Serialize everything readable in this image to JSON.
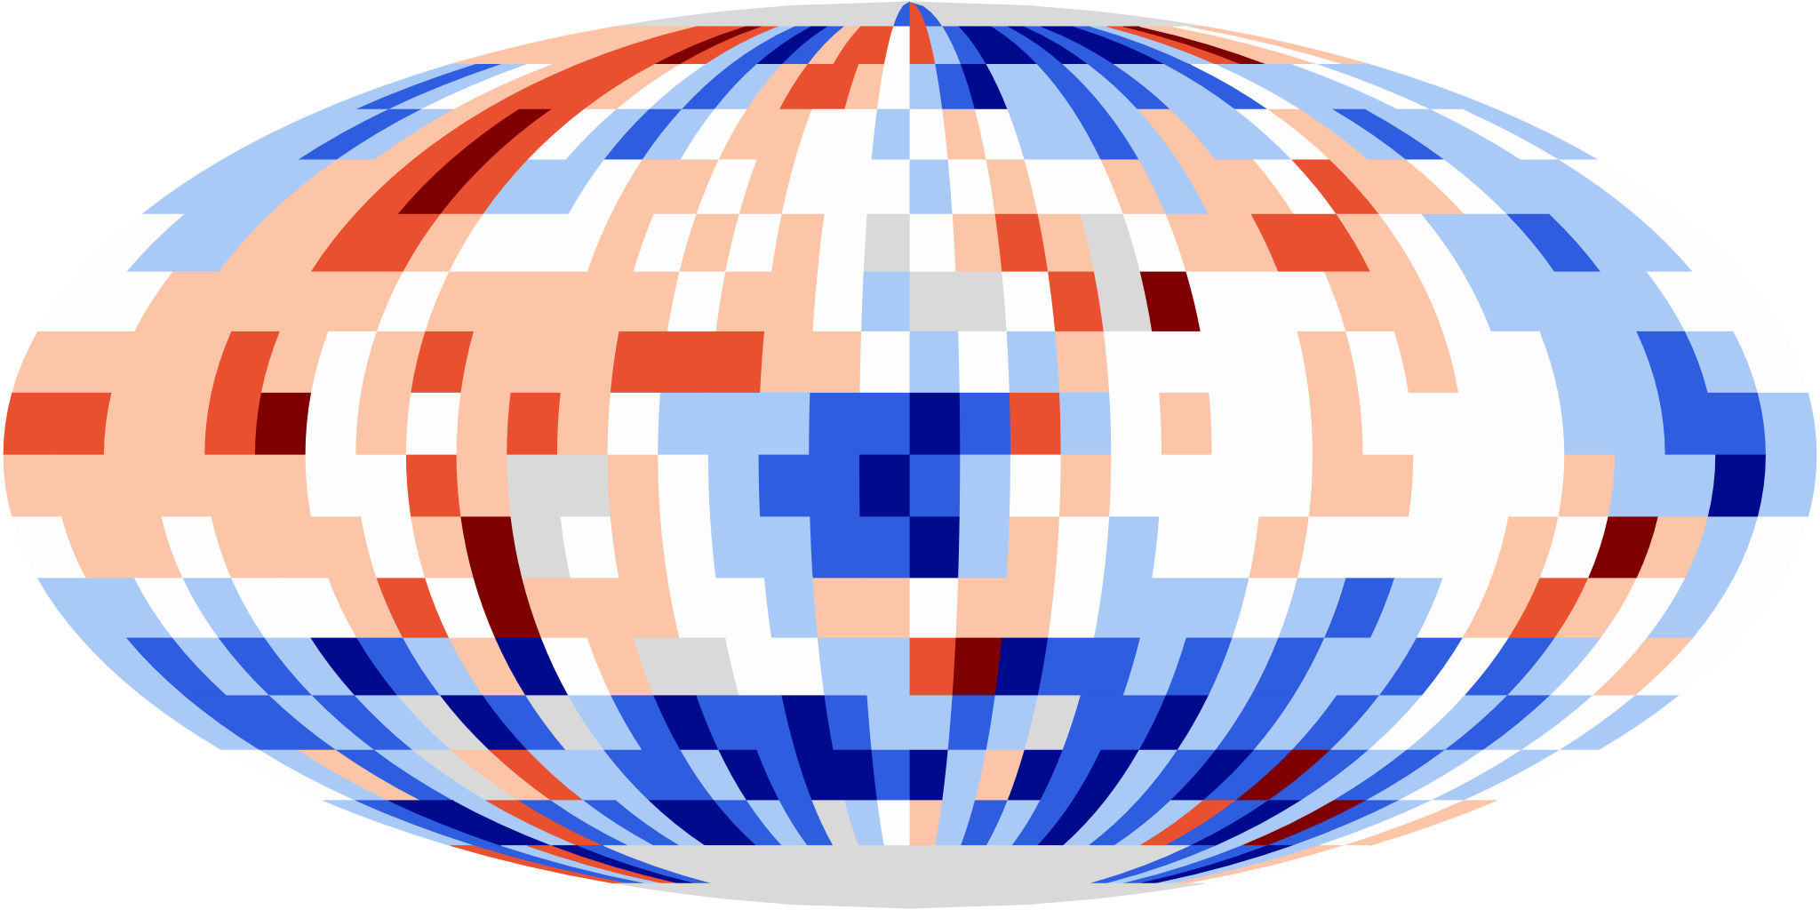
{
  "map": {
    "projection": "mollweide",
    "palette": [
      "#000a8c",
      "#2f5de0",
      "#a9c9f7",
      "#fdfdfd",
      "#fcc5a8",
      "#e8502f",
      "#7f0000"
    ],
    "missing_color": "#d9d9d9",
    "cells": [
      [
        null,
        null,
        null,
        null,
        null,
        null,
        null,
        null,
        null,
        null,
        null,
        null,
        null,
        null,
        null,
        null,
        null,
        -2,
        2,
        -2,
        null,
        null,
        null,
        null,
        null,
        null,
        null,
        null,
        null,
        null,
        null,
        null,
        null,
        null,
        null,
        null
      ],
      [
        1,
        1,
        1,
        1,
        1,
        2,
        2,
        2,
        3,
        2,
        -1,
        -2,
        -3,
        -2,
        1,
        2,
        2,
        0,
        2,
        -1,
        -2,
        -3,
        -3,
        -2,
        -3,
        -2,
        -3,
        -3,
        -2,
        -1,
        2,
        3,
        1,
        1,
        0,
        1
      ],
      [
        -1,
        -2,
        -1,
        0,
        1,
        2,
        2,
        2,
        1,
        0,
        -1,
        -2,
        -1,
        1,
        2,
        2,
        1,
        0,
        -1,
        -2,
        -3,
        -1,
        -1,
        -2,
        -1,
        -2,
        -1,
        -1,
        -2,
        0,
        -1,
        -1,
        -1,
        0,
        -1,
        -1
      ],
      [
        -1,
        -1,
        -2,
        -1,
        1,
        2,
        3,
        2,
        0,
        -1,
        -2,
        -1,
        0,
        1,
        1,
        0,
        0,
        -1,
        0,
        1,
        0,
        -1,
        -1,
        -2,
        -1,
        1,
        -1,
        -1,
        0,
        1,
        -1,
        -2,
        -1,
        -1,
        0,
        -1
      ],
      [
        -1,
        -1,
        -1,
        1,
        1,
        2,
        3,
        2,
        -1,
        -1,
        0,
        1,
        1,
        0,
        1,
        0,
        0,
        0,
        -1,
        0,
        1,
        0,
        0,
        1,
        -1,
        1,
        1,
        0,
        2,
        1,
        1,
        0,
        -1,
        -1,
        -1,
        0
      ],
      [
        0,
        -1,
        -1,
        1,
        1,
        2,
        2,
        1,
        0,
        0,
        0,
        1,
        0,
        1,
        0,
        1,
        0,
        null,
        0,
        1,
        2,
        1,
        null,
        0,
        1,
        1,
        2,
        2,
        1,
        0,
        -1,
        -1,
        -2,
        -1,
        -1,
        0
      ],
      [
        0,
        0,
        1,
        1,
        1,
        1,
        1,
        0,
        1,
        1,
        1,
        1,
        1,
        0,
        1,
        1,
        0,
        -1,
        null,
        null,
        0,
        2,
        null,
        3,
        0,
        0,
        0,
        1,
        1,
        0,
        -1,
        -1,
        -1,
        -1,
        0,
        0
      ],
      [
        1,
        1,
        1,
        1,
        2,
        1,
        0,
        1,
        2,
        1,
        1,
        1,
        2,
        2,
        2,
        1,
        1,
        0,
        -1,
        0,
        -1,
        1,
        0,
        0,
        0,
        0,
        1,
        0,
        1,
        0,
        0,
        -1,
        -1,
        -2,
        -1,
        0
      ],
      [
        2,
        2,
        1,
        1,
        2,
        3,
        0,
        1,
        0,
        1,
        2,
        1,
        0,
        -1,
        -1,
        -1,
        -2,
        -2,
        -3,
        -2,
        2,
        -1,
        0,
        1,
        0,
        0,
        1,
        0,
        0,
        0,
        0,
        -1,
        -1,
        -2,
        -2,
        -1
      ],
      [
        1,
        1,
        1,
        1,
        1,
        1,
        0,
        0,
        2,
        1,
        null,
        null,
        1,
        0,
        -1,
        -2,
        -2,
        -3,
        -2,
        -1,
        0,
        1,
        0,
        0,
        0,
        0,
        1,
        1,
        0,
        0,
        0,
        1,
        -1,
        -1,
        -3,
        -1
      ],
      [
        0,
        1,
        1,
        0,
        1,
        1,
        1,
        0,
        1,
        3,
        null,
        0,
        1,
        0,
        -1,
        -1,
        -2,
        -2,
        -3,
        -1,
        1,
        0,
        -1,
        0,
        0,
        1,
        0,
        0,
        0,
        0,
        1,
        0,
        3,
        1,
        -1,
        0
      ],
      [
        -1,
        -1,
        0,
        -1,
        0,
        0,
        1,
        2,
        0,
        3,
        1,
        1,
        1,
        0,
        0,
        -1,
        1,
        1,
        0,
        1,
        1,
        0,
        -1,
        -1,
        -1,
        0,
        -1,
        -2,
        -1,
        0,
        1,
        2,
        1,
        0,
        -1,
        0
      ],
      [
        -1,
        -2,
        -1,
        -2,
        -1,
        -3,
        -2,
        -1,
        1,
        -3,
        0,
        1,
        null,
        null,
        0,
        0,
        -1,
        -1,
        2,
        3,
        -3,
        -2,
        -2,
        -1,
        -2,
        -1,
        -2,
        -1,
        -1,
        -2,
        0,
        -2,
        -1,
        0,
        1,
        0
      ],
      [
        -1,
        -2,
        -2,
        -1,
        -2,
        -1,
        null,
        -3,
        -2,
        null,
        -1,
        -2,
        -3,
        -2,
        -2,
        -3,
        -2,
        -1,
        -1,
        -2,
        -1,
        null,
        -2,
        -2,
        -3,
        -1,
        -2,
        -1,
        -2,
        -1,
        0,
        -1,
        -2,
        -1,
        0,
        -1
      ],
      [
        0,
        -1,
        1,
        -2,
        -1,
        null,
        1,
        2,
        -1,
        -1,
        -2,
        -2,
        -1,
        -3,
        -2,
        -3,
        -3,
        -2,
        -3,
        -1,
        1,
        -3,
        -2,
        -3,
        -1,
        -2,
        -3,
        -2,
        3,
        -2,
        -1,
        -2,
        -1,
        0,
        -1,
        0
      ],
      [
        -1,
        -2,
        -3,
        -3,
        -1,
        2,
        -2,
        -1,
        -2,
        -1,
        -3,
        -3,
        -2,
        -1,
        -2,
        null,
        -1,
        0,
        1,
        -1,
        -2,
        -1,
        -2,
        -3,
        -1,
        -2,
        -1,
        2,
        -2,
        -3,
        -1,
        3,
        -2,
        -1,
        0,
        1
      ],
      [
        2,
        -2,
        -1,
        2,
        -3,
        -2,
        null,
        null,
        null,
        null,
        null,
        null,
        null,
        null,
        null,
        null,
        null,
        null,
        null,
        null,
        null,
        null,
        null,
        null,
        null,
        null,
        null,
        null,
        null,
        -2,
        -1,
        -2,
        -3,
        -1,
        1,
        0
      ],
      [
        null,
        null,
        null,
        null,
        null,
        null,
        null,
        null,
        null,
        null,
        null,
        null,
        null,
        null,
        null,
        null,
        null,
        null,
        null,
        null,
        null,
        null,
        null,
        null,
        null,
        null,
        null,
        null,
        null,
        null,
        null,
        null,
        null,
        null,
        null,
        null
      ]
    ]
  }
}
